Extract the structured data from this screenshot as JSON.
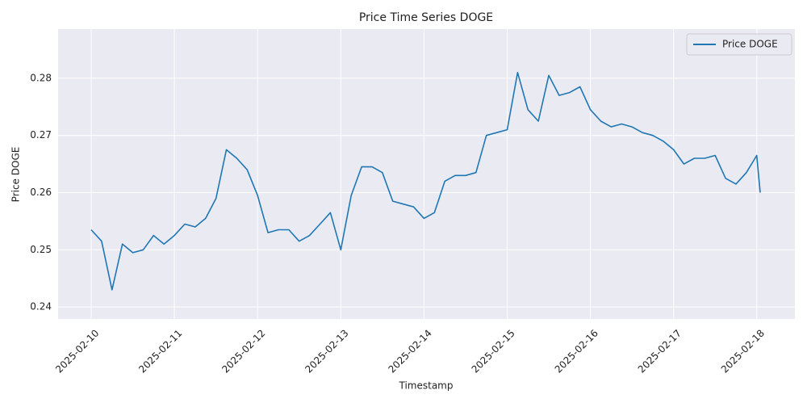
{
  "chart_data": {
    "type": "line",
    "title": "Price Time Series DOGE",
    "xlabel": "Timestamp",
    "ylabel": "Price DOGE",
    "x": [
      "2025-02-10 00:00",
      "2025-02-10 03:00",
      "2025-02-10 06:00",
      "2025-02-10 09:00",
      "2025-02-10 12:00",
      "2025-02-10 15:00",
      "2025-02-10 18:00",
      "2025-02-10 21:00",
      "2025-02-11 00:00",
      "2025-02-11 03:00",
      "2025-02-11 06:00",
      "2025-02-11 09:00",
      "2025-02-11 12:00",
      "2025-02-11 15:00",
      "2025-02-11 18:00",
      "2025-02-11 21:00",
      "2025-02-12 00:00",
      "2025-02-12 03:00",
      "2025-02-12 06:00",
      "2025-02-12 09:00",
      "2025-02-12 12:00",
      "2025-02-12 15:00",
      "2025-02-12 18:00",
      "2025-02-12 21:00",
      "2025-02-13 00:00",
      "2025-02-13 03:00",
      "2025-02-13 06:00",
      "2025-02-13 09:00",
      "2025-02-13 12:00",
      "2025-02-13 15:00",
      "2025-02-13 18:00",
      "2025-02-13 21:00",
      "2025-02-14 00:00",
      "2025-02-14 03:00",
      "2025-02-14 06:00",
      "2025-02-14 09:00",
      "2025-02-14 12:00",
      "2025-02-14 15:00",
      "2025-02-14 18:00",
      "2025-02-14 21:00",
      "2025-02-15 00:00",
      "2025-02-15 03:00",
      "2025-02-15 06:00",
      "2025-02-15 09:00",
      "2025-02-15 12:00",
      "2025-02-15 15:00",
      "2025-02-15 18:00",
      "2025-02-15 21:00",
      "2025-02-16 00:00",
      "2025-02-16 03:00",
      "2025-02-16 06:00",
      "2025-02-16 09:00",
      "2025-02-16 12:00",
      "2025-02-16 15:00",
      "2025-02-16 18:00",
      "2025-02-16 21:00",
      "2025-02-17 00:00",
      "2025-02-17 03:00",
      "2025-02-17 06:00",
      "2025-02-17 09:00",
      "2025-02-17 12:00",
      "2025-02-17 15:00",
      "2025-02-17 18:00",
      "2025-02-17 21:00",
      "2025-02-18 00:00",
      "2025-02-18 01:00"
    ],
    "series": [
      {
        "name": "Price DOGE",
        "color": "#1f77b4",
        "values": [
          0.2535,
          0.2515,
          0.243,
          0.251,
          0.2495,
          0.25,
          0.2525,
          0.251,
          0.2525,
          0.2545,
          0.254,
          0.2555,
          0.259,
          0.2675,
          0.266,
          0.264,
          0.2595,
          0.253,
          0.2535,
          0.2535,
          0.2515,
          0.2525,
          0.2545,
          0.2565,
          0.25,
          0.2595,
          0.2645,
          0.2645,
          0.2635,
          0.2585,
          0.258,
          0.2575,
          0.2555,
          0.2565,
          0.262,
          0.263,
          0.263,
          0.2635,
          0.27,
          0.2705,
          0.271,
          0.281,
          0.2745,
          0.2725,
          0.2805,
          0.277,
          0.2775,
          0.2785,
          0.2745,
          0.2725,
          0.2715,
          0.272,
          0.2715,
          0.2705,
          0.27,
          0.269,
          0.2675,
          0.265,
          0.266,
          0.266,
          0.2665,
          0.2625,
          0.2615,
          0.2635,
          0.2665,
          0.26
        ]
      }
    ],
    "xlim": [
      "2025-02-09 14:27",
      "2025-02-18 11:00"
    ],
    "xticks": [
      "2025-02-10",
      "2025-02-11",
      "2025-02-12",
      "2025-02-13",
      "2025-02-14",
      "2025-02-15",
      "2025-02-16",
      "2025-02-17",
      "2025-02-18"
    ],
    "ylim": [
      0.2379,
      0.2886
    ],
    "yticks": [
      0.24,
      0.25,
      0.26,
      0.27,
      0.28
    ],
    "grid": true,
    "legend": "upper right"
  }
}
